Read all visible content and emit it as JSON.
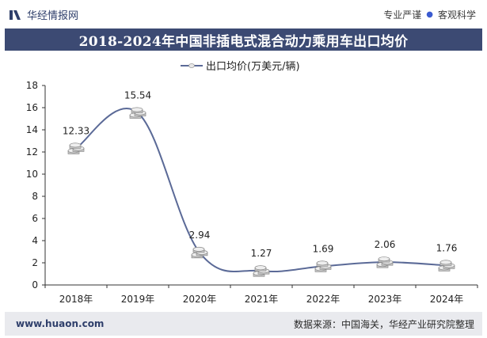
{
  "header": {
    "brand": "华经情报网",
    "tagline_left": "专业严谨",
    "tagline_right": "客观科学"
  },
  "footer": {
    "site": "www.huaon.com",
    "source": "数据来源：中国海关，华经产业研究院整理"
  },
  "colors": {
    "title_bar": "#3c4a73",
    "line": "#5b6a97",
    "brand": "#2f3f6b",
    "footer_bg": "#e9eaee"
  },
  "chart_data": {
    "type": "line",
    "title": "2018-2024年中国非插电式混合动力乘用车出口均价",
    "categories": [
      "2018年",
      "2019年",
      "2020年",
      "2021年",
      "2022年",
      "2023年",
      "2024年"
    ],
    "series": [
      {
        "name": "出口均价(万美元/辆)",
        "values": [
          12.33,
          15.54,
          2.94,
          1.27,
          1.69,
          2.06,
          1.76
        ]
      }
    ],
    "data_labels": [
      "12.33",
      "15.54",
      "2.94",
      "1.27",
      "1.69",
      "2.06",
      "1.76"
    ],
    "y_ticks": [
      "0",
      "2",
      "4",
      "6",
      "8",
      "10",
      "12",
      "14",
      "16",
      "18"
    ],
    "ylim": [
      0,
      18
    ],
    "grid": false,
    "legend_position": "top-center",
    "marker": "coin-stack-icon",
    "smooth": true
  }
}
